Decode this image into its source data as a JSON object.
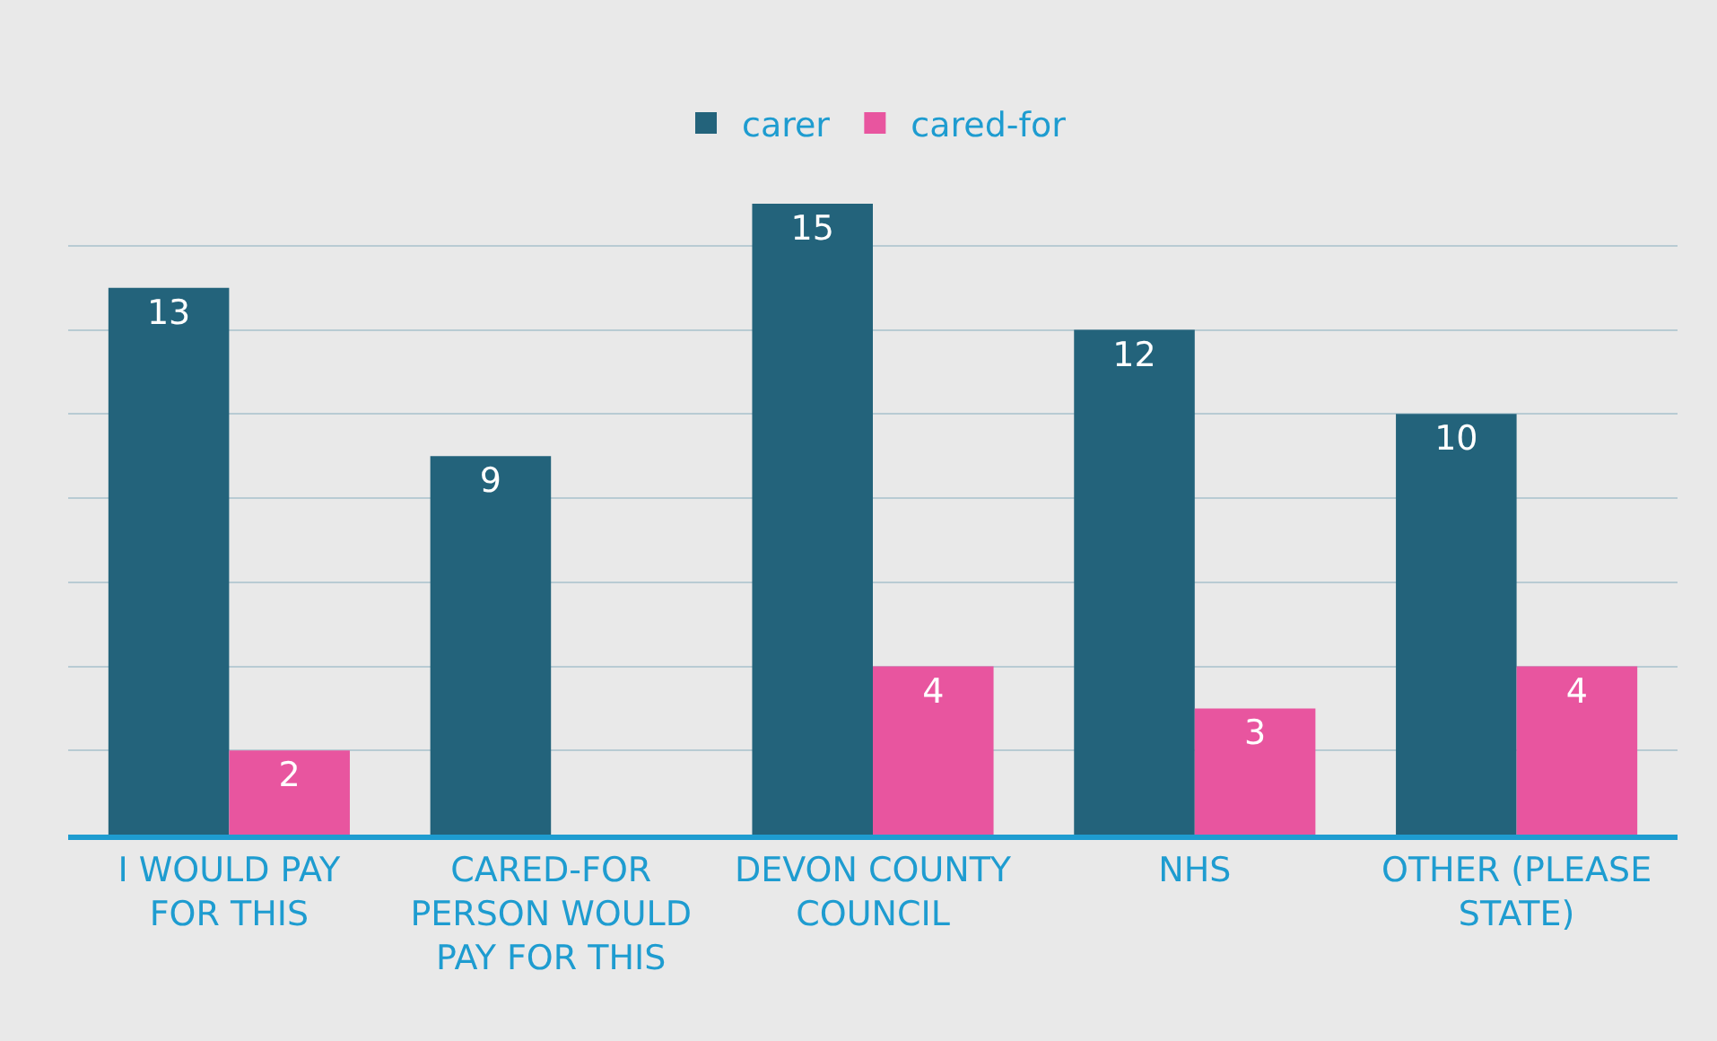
{
  "chart_data": {
    "type": "bar",
    "categories": [
      "I WOULD PAY FOR THIS",
      "CARED-FOR PERSON WOULD PAY FOR THIS",
      "DEVON COUNTY COUNCIL",
      "NHS",
      "OTHER (PLEASE STATE)"
    ],
    "series": [
      {
        "name": "carer",
        "color": "#23637b",
        "values": [
          13,
          9,
          15,
          12,
          10
        ]
      },
      {
        "name": "cared-for",
        "color": "#e8559f",
        "values": [
          2,
          null,
          4,
          3,
          4
        ]
      }
    ],
    "grid": "y",
    "legend": "top",
    "data_labels": true,
    "tick_labels": "x"
  }
}
